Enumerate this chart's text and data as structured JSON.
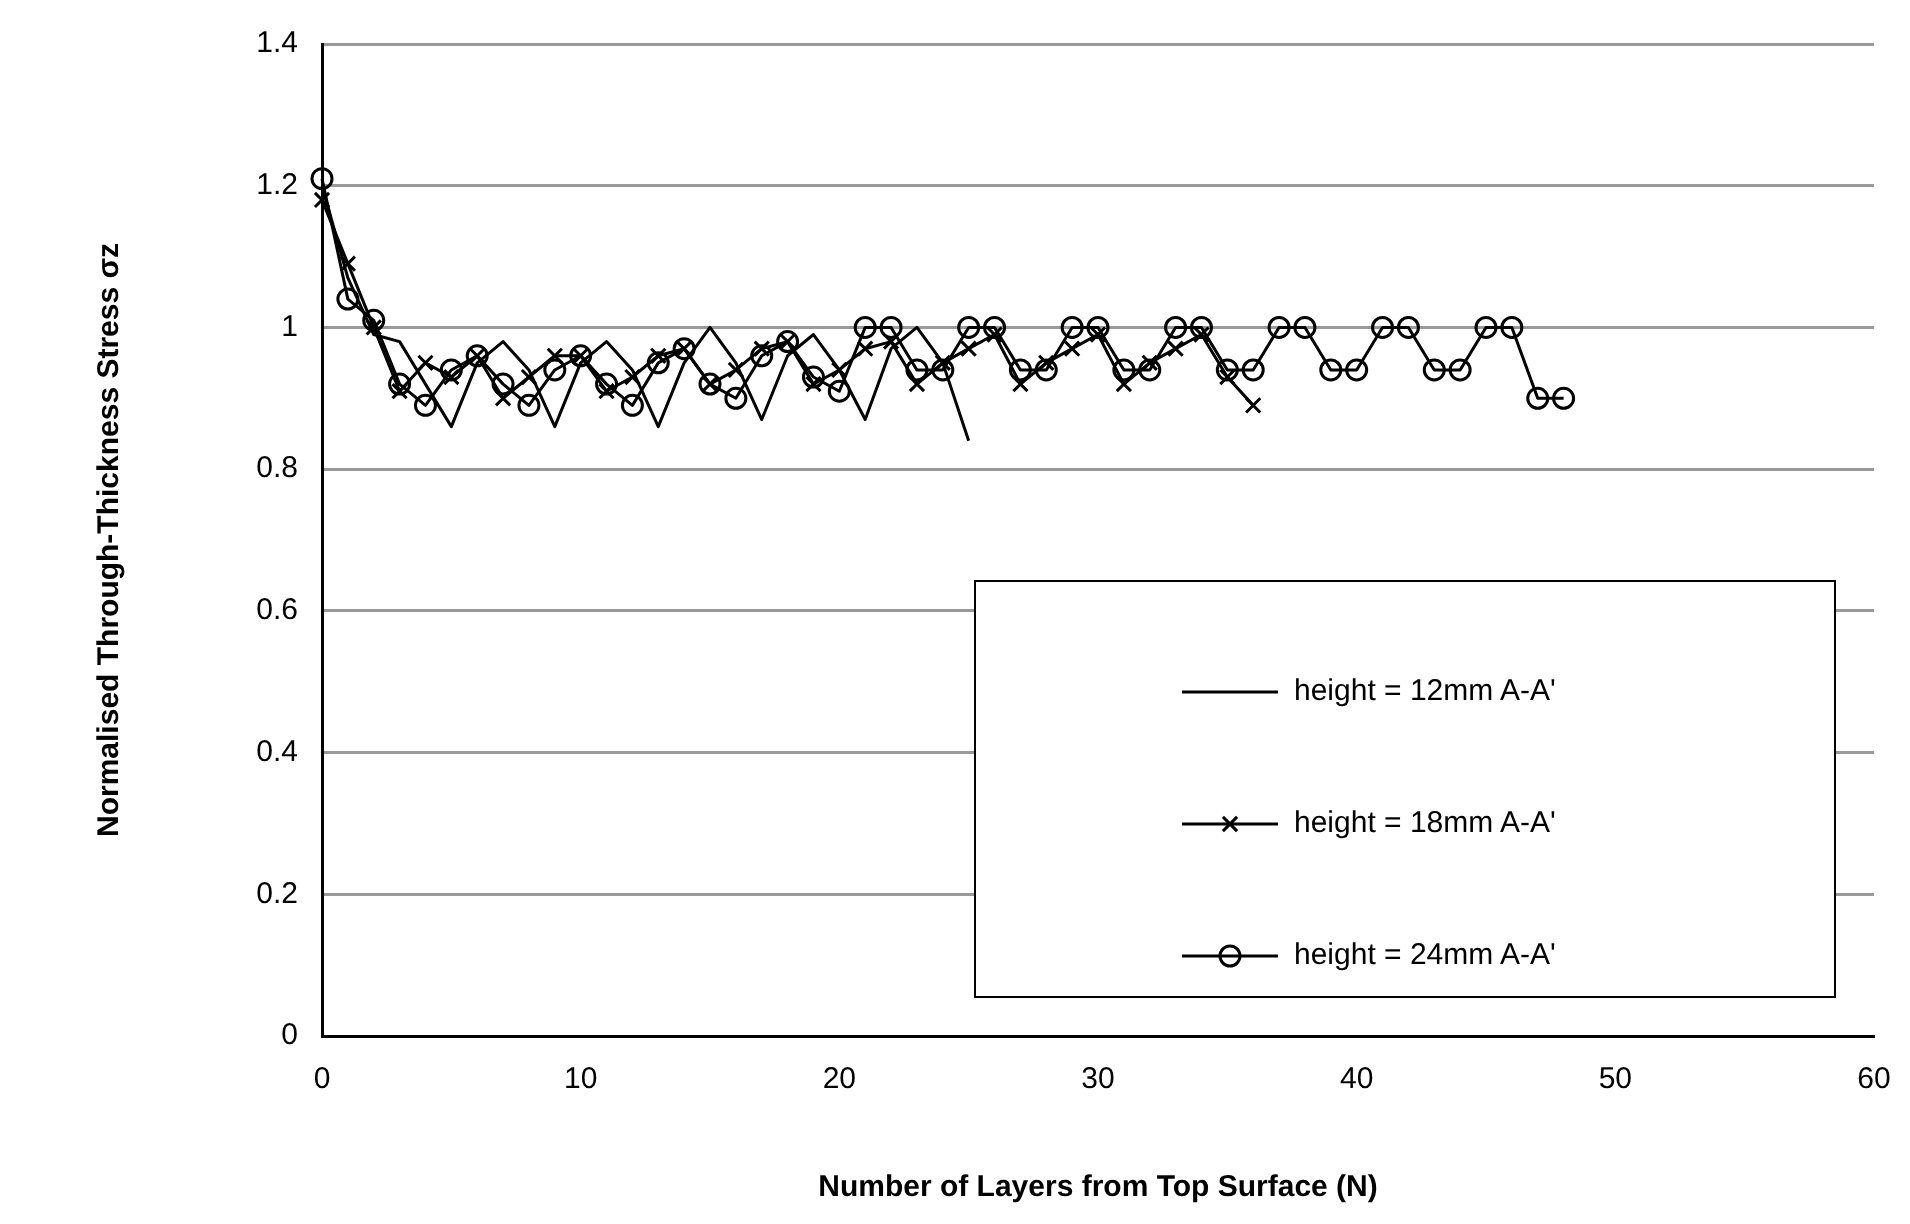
{
  "chart_data": {
    "type": "line",
    "xlabel": "Number of Layers from Top Surface (N)",
    "ylabel": "Normalised Through-Thickness Stress σz",
    "xlim": [
      0,
      60
    ],
    "xticks": [
      0,
      10,
      20,
      30,
      40,
      50,
      60
    ],
    "ylim": [
      0,
      1.4
    ],
    "yticks": [
      0,
      0.2,
      0.4,
      0.6,
      0.8,
      1,
      1.2,
      1.4
    ],
    "grid": "y",
    "legend": "bottom right",
    "series": [
      {
        "name": "height = 12mm A-A'",
        "color": "#000000",
        "marker": "none",
        "x": [
          0,
          1,
          2,
          3,
          4,
          5,
          6,
          7,
          8,
          9,
          10,
          11,
          12,
          13,
          14,
          15,
          16,
          17,
          18,
          19,
          20,
          21,
          22,
          23,
          24,
          25
        ],
        "values": [
          1.2,
          1.07,
          0.99,
          0.98,
          0.92,
          0.86,
          0.95,
          0.98,
          0.94,
          0.86,
          0.95,
          0.98,
          0.94,
          0.86,
          0.95,
          1.0,
          0.95,
          0.87,
          0.96,
          0.99,
          0.94,
          0.87,
          0.97,
          1.0,
          0.95,
          0.84
        ]
      },
      {
        "name": "height = 18mm A-A'",
        "color": "#000000",
        "marker": "cross",
        "x": [
          0,
          1,
          2,
          3,
          4,
          5,
          6,
          7,
          8,
          9,
          10,
          11,
          12,
          13,
          14,
          15,
          16,
          17,
          18,
          19,
          20,
          21,
          22,
          23,
          24,
          25,
          26,
          27,
          28,
          29,
          30,
          31,
          32,
          33,
          34,
          35,
          36
        ],
        "values": [
          1.18,
          1.09,
          1.0,
          0.91,
          0.95,
          0.93,
          0.96,
          0.9,
          0.93,
          0.96,
          0.96,
          0.91,
          0.93,
          0.96,
          0.97,
          0.92,
          0.94,
          0.97,
          0.98,
          0.92,
          0.94,
          0.97,
          0.98,
          0.92,
          0.95,
          0.97,
          0.99,
          0.92,
          0.95,
          0.97,
          0.99,
          0.92,
          0.95,
          0.97,
          0.99,
          0.93,
          0.89
        ]
      },
      {
        "name": "height = 24mm A-A'",
        "color": "#000000",
        "marker": "circle",
        "x": [
          0,
          1,
          2,
          3,
          4,
          5,
          6,
          7,
          8,
          9,
          10,
          11,
          12,
          13,
          14,
          15,
          16,
          17,
          18,
          19,
          20,
          21,
          22,
          23,
          24,
          25,
          26,
          27,
          28,
          29,
          30,
          31,
          32,
          33,
          34,
          35,
          36,
          37,
          38,
          39,
          40,
          41,
          42,
          43,
          44,
          45,
          46,
          47,
          48
        ],
        "values": [
          1.21,
          1.04,
          1.01,
          0.92,
          0.89,
          0.94,
          0.96,
          0.92,
          0.89,
          0.94,
          0.96,
          0.92,
          0.89,
          0.95,
          0.97,
          0.92,
          0.9,
          0.96,
          0.98,
          0.93,
          0.91,
          1.0,
          1.0,
          0.94,
          0.94,
          1.0,
          1.0,
          0.94,
          0.94,
          1.0,
          1.0,
          0.94,
          0.94,
          1.0,
          1.0,
          0.94,
          0.94,
          1.0,
          1.0,
          0.94,
          0.94,
          1.0,
          1.0,
          0.94,
          0.94,
          1.0,
          1.0,
          0.9,
          0.9
        ]
      }
    ]
  }
}
